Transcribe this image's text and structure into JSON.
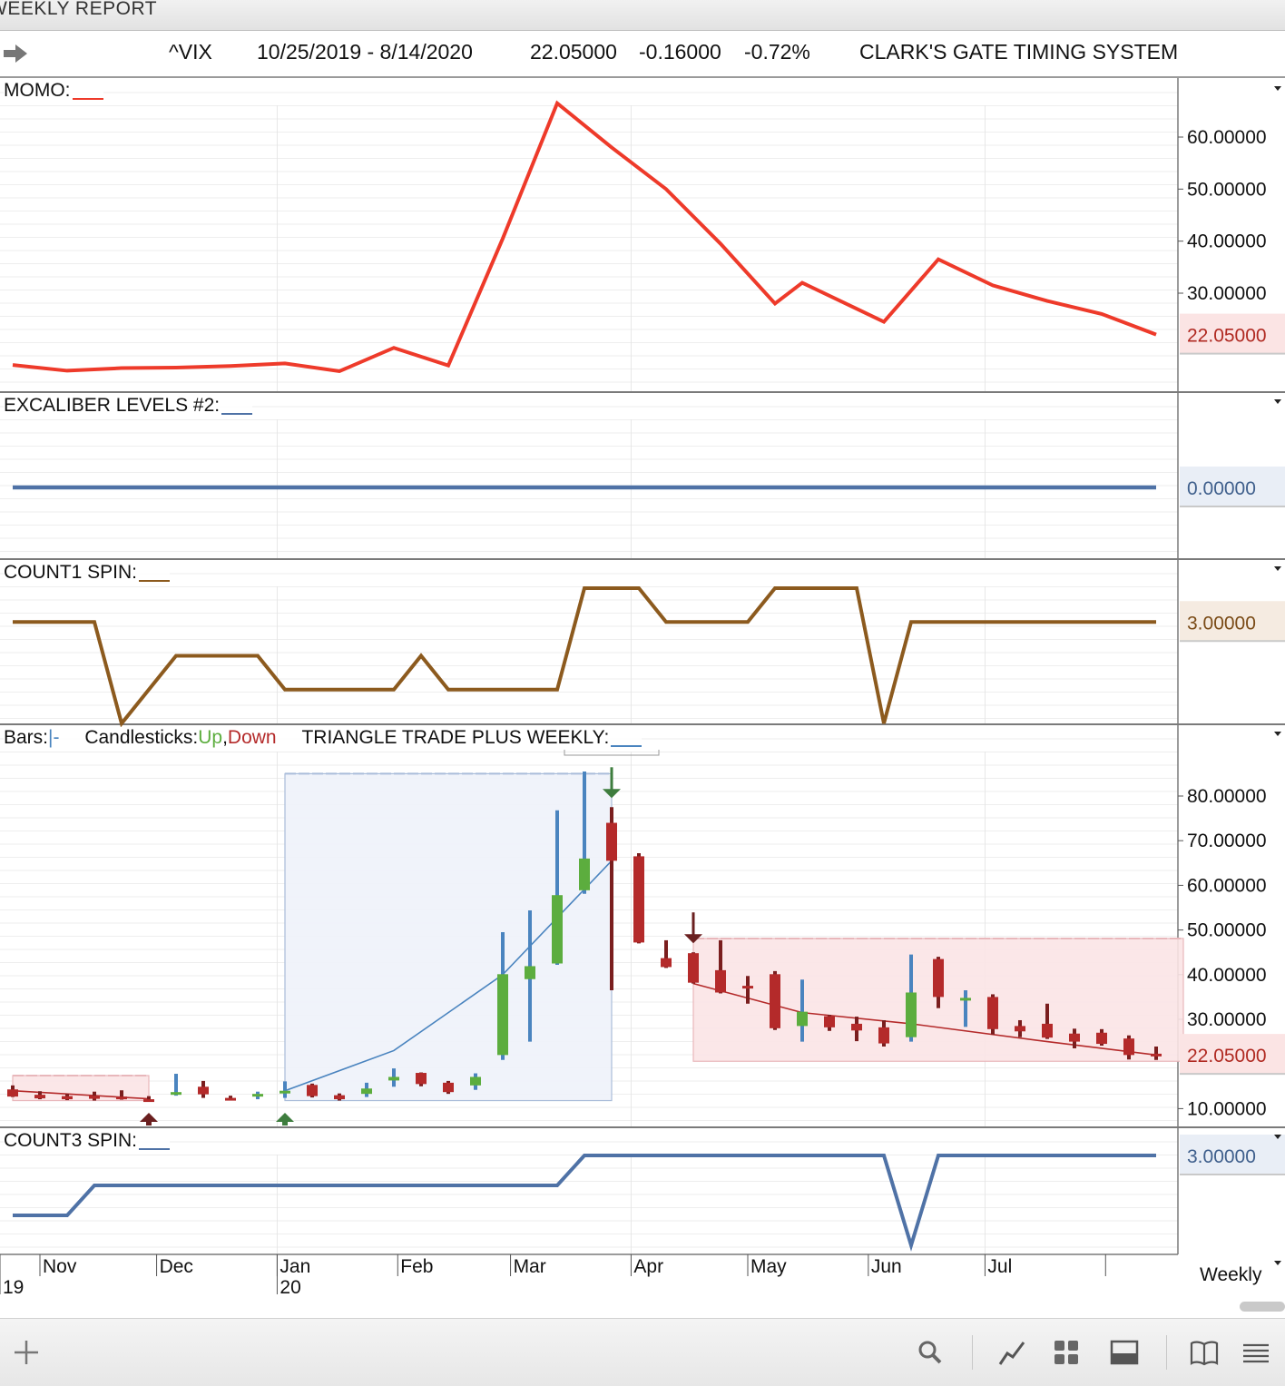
{
  "window": {
    "title": "WEEKLY REPORT"
  },
  "header": {
    "symbol": "^VIX",
    "date_range": "10/25/2019 - 8/14/2020",
    "last": "22.05000",
    "change": "-0.16000",
    "change_pct": "-0.72%",
    "study_name": "CLARK'S GATE TIMING SYSTEM"
  },
  "chart_data": [
    {
      "type": "line",
      "panel": "MOMO",
      "label": "MOMO:",
      "color": "#ee3a2a",
      "x": [
        "2019-10-25",
        "2019-11-08",
        "2019-11-22",
        "2019-12-06",
        "2019-12-20",
        "2020-01-03",
        "2020-01-17",
        "2020-01-31",
        "2020-02-14",
        "2020-02-28",
        "2020-03-13",
        "2020-03-27",
        "2020-04-10",
        "2020-04-24",
        "2020-05-08",
        "2020-05-15",
        "2020-05-29",
        "2020-06-05",
        "2020-06-19",
        "2020-07-03",
        "2020-07-17",
        "2020-07-31",
        "2020-08-14"
      ],
      "values": [
        16.2,
        15.1,
        15.6,
        15.7,
        16.0,
        16.5,
        15.0,
        19.5,
        16.1,
        40.5,
        66.5,
        58.0,
        50.0,
        39.5,
        28.0,
        32.0,
        27.0,
        24.5,
        36.5,
        31.5,
        28.5,
        26.0,
        22.05
      ],
      "y_ticks": [
        "60.00000",
        "50.00000",
        "40.00000",
        "30.00000"
      ],
      "last_label": "22.05000",
      "ylim": [
        10.5,
        69
      ]
    },
    {
      "type": "line",
      "panel": "EXCALIBER LEVELS #2",
      "label": "EXCALIBER LEVELS #2:",
      "color": "#4f72a6",
      "x": [
        "2019-10-25",
        "2020-08-14"
      ],
      "values": [
        0,
        0
      ],
      "last_label": "0.00000",
      "ylim": [
        -1,
        1
      ]
    },
    {
      "type": "line",
      "panel": "COUNT1 SPIN",
      "label": "COUNT1 SPIN:",
      "color": "#8c5a1e",
      "x": [
        "2019-10-25",
        "2019-11-15",
        "2019-11-22",
        "2019-12-06",
        "2019-12-27",
        "2020-01-03",
        "2020-01-31",
        "2020-02-07",
        "2020-02-14",
        "2020-03-13",
        "2020-03-20",
        "2020-04-03",
        "2020-04-10",
        "2020-05-01",
        "2020-05-08",
        "2020-05-29",
        "2020-06-05",
        "2020-06-12",
        "2020-08-14"
      ],
      "values": [
        3,
        3,
        0,
        2,
        2,
        1,
        1,
        2,
        1,
        1,
        4,
        4,
        3,
        3,
        4,
        4,
        0,
        3,
        3
      ],
      "last_label": "3.00000",
      "ylim": [
        0,
        4
      ]
    },
    {
      "type": "candlestick",
      "panel": "TRIANGLE TRADE PLUS WEEKLY",
      "label": "TRIANGLE TRADE PLUS WEEKLY:",
      "legend": {
        "bars": "Bars:",
        "bars_glyph": "|-",
        "candles": "Candlesticks:",
        "up": "Up",
        "comma": ",",
        "down": "Down"
      },
      "colors": {
        "up": "#5cad3e",
        "down": "#b42a2a",
        "bar": "#4a84bf"
      },
      "candles": [
        {
          "x": "2019-10-25",
          "o": 14.3,
          "h": 15.2,
          "l": 12.6,
          "c": 12.7
        },
        {
          "x": "2019-11-01",
          "o": 13.1,
          "h": 13.9,
          "l": 12.1,
          "c": 12.3
        },
        {
          "x": "2019-11-08",
          "o": 12.8,
          "h": 13.3,
          "l": 11.9,
          "c": 12.1
        },
        {
          "x": "2019-11-15",
          "o": 12.9,
          "h": 13.8,
          "l": 11.8,
          "c": 12.2
        },
        {
          "x": "2019-11-22",
          "o": 12.7,
          "h": 14.1,
          "l": 12.0,
          "c": 12.5
        },
        {
          "x": "2019-11-29",
          "o": 12.1,
          "h": 12.8,
          "l": 11.9,
          "c": 12.0
        },
        {
          "x": "2019-12-06",
          "o": 13.2,
          "h": 17.8,
          "l": 12.9,
          "c": 13.7
        },
        {
          "x": "2019-12-13",
          "o": 14.9,
          "h": 16.2,
          "l": 12.4,
          "c": 13.2
        },
        {
          "x": "2019-12-20",
          "o": 12.4,
          "h": 12.9,
          "l": 11.9,
          "c": 12.2
        },
        {
          "x": "2019-12-27",
          "o": 12.7,
          "h": 13.8,
          "l": 12.1,
          "c": 13.3
        },
        {
          "x": "2020-01-03",
          "o": 13.7,
          "h": 16.1,
          "l": 12.4,
          "c": 14.0
        },
        {
          "x": "2020-01-10",
          "o": 15.3,
          "h": 15.6,
          "l": 12.5,
          "c": 12.8
        },
        {
          "x": "2020-01-17",
          "o": 13.0,
          "h": 13.4,
          "l": 11.8,
          "c": 12.1
        },
        {
          "x": "2020-01-24",
          "o": 13.3,
          "h": 15.8,
          "l": 12.6,
          "c": 14.5
        },
        {
          "x": "2020-01-31",
          "o": 16.3,
          "h": 19.0,
          "l": 14.9,
          "c": 17.1
        },
        {
          "x": "2020-02-07",
          "o": 18.0,
          "h": 18.1,
          "l": 15.0,
          "c": 15.5
        },
        {
          "x": "2020-02-14",
          "o": 15.8,
          "h": 16.2,
          "l": 13.3,
          "c": 13.7
        },
        {
          "x": "2020-02-21",
          "o": 15.2,
          "h": 17.9,
          "l": 14.2,
          "c": 17.1
        },
        {
          "x": "2020-02-28",
          "o": 22.0,
          "h": 49.5,
          "l": 20.9,
          "c": 40.1
        },
        {
          "x": "2020-03-06",
          "o": 39.0,
          "h": 54.4,
          "l": 25.0,
          "c": 41.9
        },
        {
          "x": "2020-03-13",
          "o": 42.5,
          "h": 76.8,
          "l": 42.2,
          "c": 57.8
        },
        {
          "x": "2020-03-20",
          "o": 58.9,
          "h": 85.5,
          "l": 58.1,
          "c": 66.0
        },
        {
          "x": "2020-03-27",
          "o": 74.0,
          "h": 77.5,
          "l": 36.5,
          "c": 65.5
        },
        {
          "x": "2020-04-03",
          "o": 66.5,
          "h": 67.2,
          "l": 47.0,
          "c": 47.2
        },
        {
          "x": "2020-04-10",
          "o": 43.7,
          "h": 47.7,
          "l": 41.5,
          "c": 41.7
        },
        {
          "x": "2020-04-17",
          "o": 44.8,
          "h": 45.0,
          "l": 38.0,
          "c": 38.2
        },
        {
          "x": "2020-04-24",
          "o": 41.0,
          "h": 47.7,
          "l": 35.8,
          "c": 36.0
        },
        {
          "x": "2020-05-01",
          "o": 37.5,
          "h": 39.7,
          "l": 33.5,
          "c": 37.2
        },
        {
          "x": "2020-05-08",
          "o": 40.1,
          "h": 40.8,
          "l": 27.6,
          "c": 28.0
        },
        {
          "x": "2020-05-15",
          "o": 28.5,
          "h": 38.9,
          "l": 25.0,
          "c": 31.7
        },
        {
          "x": "2020-05-22",
          "o": 30.7,
          "h": 31.0,
          "l": 27.4,
          "c": 28.2
        },
        {
          "x": "2020-05-29",
          "o": 29.0,
          "h": 30.6,
          "l": 25.1,
          "c": 27.5
        },
        {
          "x": "2020-06-05",
          "o": 28.2,
          "h": 29.8,
          "l": 23.9,
          "c": 24.6
        },
        {
          "x": "2020-06-12",
          "o": 26.0,
          "h": 44.5,
          "l": 25.0,
          "c": 36.0
        },
        {
          "x": "2020-06-19",
          "o": 43.5,
          "h": 44.0,
          "l": 32.5,
          "c": 35.0
        },
        {
          "x": "2020-06-26",
          "o": 34.5,
          "h": 36.5,
          "l": 28.3,
          "c": 34.8
        },
        {
          "x": "2020-07-03",
          "o": 35.0,
          "h": 35.6,
          "l": 26.6,
          "c": 27.8
        },
        {
          "x": "2020-07-10",
          "o": 28.5,
          "h": 29.8,
          "l": 26.0,
          "c": 27.3
        },
        {
          "x": "2020-07-17",
          "o": 29.0,
          "h": 33.5,
          "l": 25.6,
          "c": 25.9
        },
        {
          "x": "2020-07-24",
          "o": 26.8,
          "h": 27.9,
          "l": 23.5,
          "c": 25.0
        },
        {
          "x": "2020-07-31",
          "o": 27.0,
          "h": 27.8,
          "l": 24.1,
          "c": 24.5
        },
        {
          "x": "2020-08-07",
          "o": 25.7,
          "h": 26.4,
          "l": 21.0,
          "c": 22.0
        },
        {
          "x": "2020-08-14",
          "o": 22.3,
          "h": 23.9,
          "l": 20.9,
          "c": 22.1
        }
      ],
      "trend_lines": [
        {
          "color": "#b42a2a",
          "points": [
            [
              "2019-10-25",
              14.0
            ],
            [
              "2019-11-29",
              12.2
            ]
          ]
        },
        {
          "color": "#4a84bf",
          "points": [
            [
              "2020-01-03",
              14.0
            ],
            [
              "2020-01-31",
              23.0
            ],
            [
              "2020-02-28",
              40.0
            ],
            [
              "2020-03-27",
              65.5
            ]
          ]
        },
        {
          "color": "#b42a2a",
          "points": [
            [
              "2020-04-17",
              38.0
            ],
            [
              "2020-05-15",
              31.5
            ],
            [
              "2020-06-12",
              29.0
            ],
            [
              "2020-07-17",
              25.0
            ],
            [
              "2020-08-14",
              22.0
            ]
          ]
        }
      ],
      "zones": [
        {
          "color": "red",
          "x0": "2019-10-25",
          "x1": "2019-11-29",
          "y0": 11.8,
          "y1": 17.4
        },
        {
          "color": "blue",
          "x0": "2020-01-03",
          "x1": "2020-03-27",
          "y0": 11.8,
          "y1": 85.0
        },
        {
          "color": "red",
          "x0": "2020-04-17",
          "x1": "2020-08-21",
          "y0": 20.6,
          "y1": 48.1
        }
      ],
      "signals": [
        {
          "x": "2019-11-29",
          "dir": "up",
          "color": "#6a1f1f"
        },
        {
          "x": "2020-01-03",
          "dir": "up",
          "color": "#3e7d3e"
        },
        {
          "x": "2020-03-27",
          "dir": "down",
          "color": "#3e7d3e"
        },
        {
          "x": "2020-04-17",
          "dir": "down",
          "color": "#6a1f1f"
        }
      ],
      "y_ticks": [
        "80.00000",
        "70.00000",
        "60.00000",
        "50.00000",
        "40.00000",
        "30.00000",
        "10.00000"
      ],
      "last_label": "22.05000",
      "ylim": [
        7.5,
        90
      ]
    },
    {
      "type": "line",
      "panel": "COUNT3 SPIN",
      "label": "COUNT3 SPIN:",
      "color": "#4f72a6",
      "x": [
        "2019-10-25",
        "2019-11-08",
        "2019-11-15",
        "2020-03-13",
        "2020-03-20",
        "2020-06-05",
        "2020-06-12",
        "2020-06-19",
        "2020-08-14"
      ],
      "values": [
        1,
        1,
        2,
        2,
        3,
        3,
        0,
        3,
        3
      ],
      "last_label": "3.00000",
      "ylim": [
        0,
        3
      ]
    }
  ],
  "x_axis": {
    "months": [
      "Nov",
      "Dec",
      "Jan",
      "Feb",
      "Mar",
      "Apr",
      "May",
      "Jun",
      "Jul"
    ],
    "years": [
      "19",
      "20"
    ],
    "timeframe": "Weekly"
  },
  "toolbar": {
    "icons": [
      "plus-icon",
      "search-icon",
      "draw-line-icon",
      "grid-icon",
      "panel-icon",
      "book-icon",
      "menu-icon"
    ]
  }
}
